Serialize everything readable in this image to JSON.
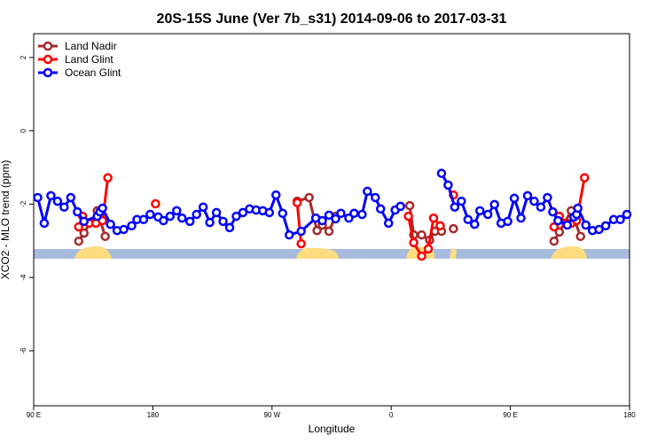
{
  "chart_data": {
    "type": "line",
    "title": "20S-15S June (Ver 7b_s31)   2014-09-06 to 2017-03-31",
    "xlabel": "Longitude",
    "ylabel": "XCO2 - MLO trend (ppm)",
    "xlim": [
      90,
      540
    ],
    "xticks": [
      {
        "value": 90,
        "label": "90 E"
      },
      {
        "value": 180,
        "label": "180"
      },
      {
        "value": 270,
        "label": "90 W"
      },
      {
        "value": 360,
        "label": "0"
      },
      {
        "value": 450,
        "label": "90 E"
      },
      {
        "value": 540,
        "label": "180"
      }
    ],
    "ylim": [
      -7.5,
      2.65
    ],
    "yticks": [
      2,
      0,
      -2,
      -4,
      -6
    ],
    "legend": "upper left",
    "series": [
      {
        "name": "Land Nadir",
        "color": "#a52a2a",
        "x": [
          124,
          128,
          138,
          144,
          null,
          289,
          298,
          304,
          308,
          313,
          318,
          null,
          374,
          377,
          383,
          389,
          393,
          398,
          null,
          407,
          null,
          483,
          487,
          496,
          503
        ],
        "values": [
          -3.01,
          -2.79,
          -2.18,
          -2.88,
          null,
          -1.92,
          -1.82,
          -2.72,
          -2.57,
          -2.74,
          -2.33,
          null,
          -2.04,
          -2.84,
          -2.84,
          -2.98,
          -2.74,
          -2.74,
          null,
          -2.67,
          null,
          -3.01,
          -2.76,
          -2.18,
          -2.88
        ]
      },
      {
        "name": "Land Glint",
        "color": "#ff0000",
        "x": [
          124,
          127,
          132,
          137,
          142,
          146,
          null,
          182,
          null,
          289,
          292,
          null,
          373,
          377,
          383,
          388,
          392,
          397,
          null,
          407,
          null,
          483,
          487,
          492,
          496,
          500,
          506
        ],
        "values": [
          -2.62,
          -2.33,
          -2.52,
          -2.52,
          -2.45,
          -1.28,
          null,
          -1.99,
          null,
          -1.96,
          -3.08,
          null,
          -2.33,
          -3.05,
          -3.42,
          -3.22,
          -2.38,
          -2.59,
          null,
          -1.75,
          null,
          -2.62,
          -2.33,
          -2.52,
          -2.52,
          -2.45,
          -1.28
        ]
      },
      {
        "name": "Ocean Glint",
        "color": "#0000ff",
        "x": [
          93,
          98,
          103,
          108,
          113,
          118,
          123,
          128,
          138,
          140,
          142,
          148,
          153,
          158,
          164,
          168,
          173,
          178,
          184,
          188,
          193,
          198,
          202,
          208,
          213,
          218,
          223,
          228,
          233,
          238,
          243,
          248,
          253,
          258,
          263,
          268,
          273,
          278,
          283,
          292,
          303,
          308,
          313,
          318,
          322,
          328,
          332,
          338,
          342,
          348,
          352,
          358,
          363,
          367,
          null,
          398,
          403,
          408,
          413,
          418,
          423,
          427,
          433,
          438,
          443,
          448,
          453,
          458,
          463,
          468,
          473,
          478,
          482,
          486,
          493,
          498,
          500,
          501,
          507,
          512,
          517,
          522,
          528,
          533,
          538
        ],
        "values": [
          -1.82,
          -2.52,
          -1.77,
          -1.92,
          -2.08,
          -1.82,
          -2.21,
          -2.47,
          -2.33,
          -2.21,
          -2.11,
          -2.55,
          -2.72,
          -2.69,
          -2.59,
          -2.42,
          -2.42,
          -2.28,
          -2.35,
          -2.45,
          -2.33,
          -2.18,
          -2.38,
          -2.47,
          -2.28,
          -2.08,
          -2.5,
          -2.23,
          -2.47,
          -2.64,
          -2.33,
          -2.23,
          -2.13,
          -2.16,
          -2.18,
          -2.23,
          -1.75,
          -2.25,
          -2.84,
          -2.74,
          -2.38,
          -2.45,
          -2.3,
          -2.4,
          -2.25,
          -2.38,
          -2.25,
          -2.28,
          -1.65,
          -1.82,
          -2.13,
          -2.52,
          -2.16,
          -2.06,
          null,
          -1.16,
          -1.48,
          -2.08,
          -1.92,
          -2.42,
          -2.55,
          -2.18,
          -2.28,
          -2.01,
          -2.52,
          -2.47,
          -1.84,
          -2.38,
          -1.77,
          -1.92,
          -2.08,
          -1.82,
          -2.21,
          -2.45,
          -2.57,
          -2.35,
          -2.28,
          -2.11,
          -2.57,
          -2.72,
          -2.69,
          -2.59,
          -2.42,
          -2.42,
          -2.28
        ]
      }
    ]
  }
}
